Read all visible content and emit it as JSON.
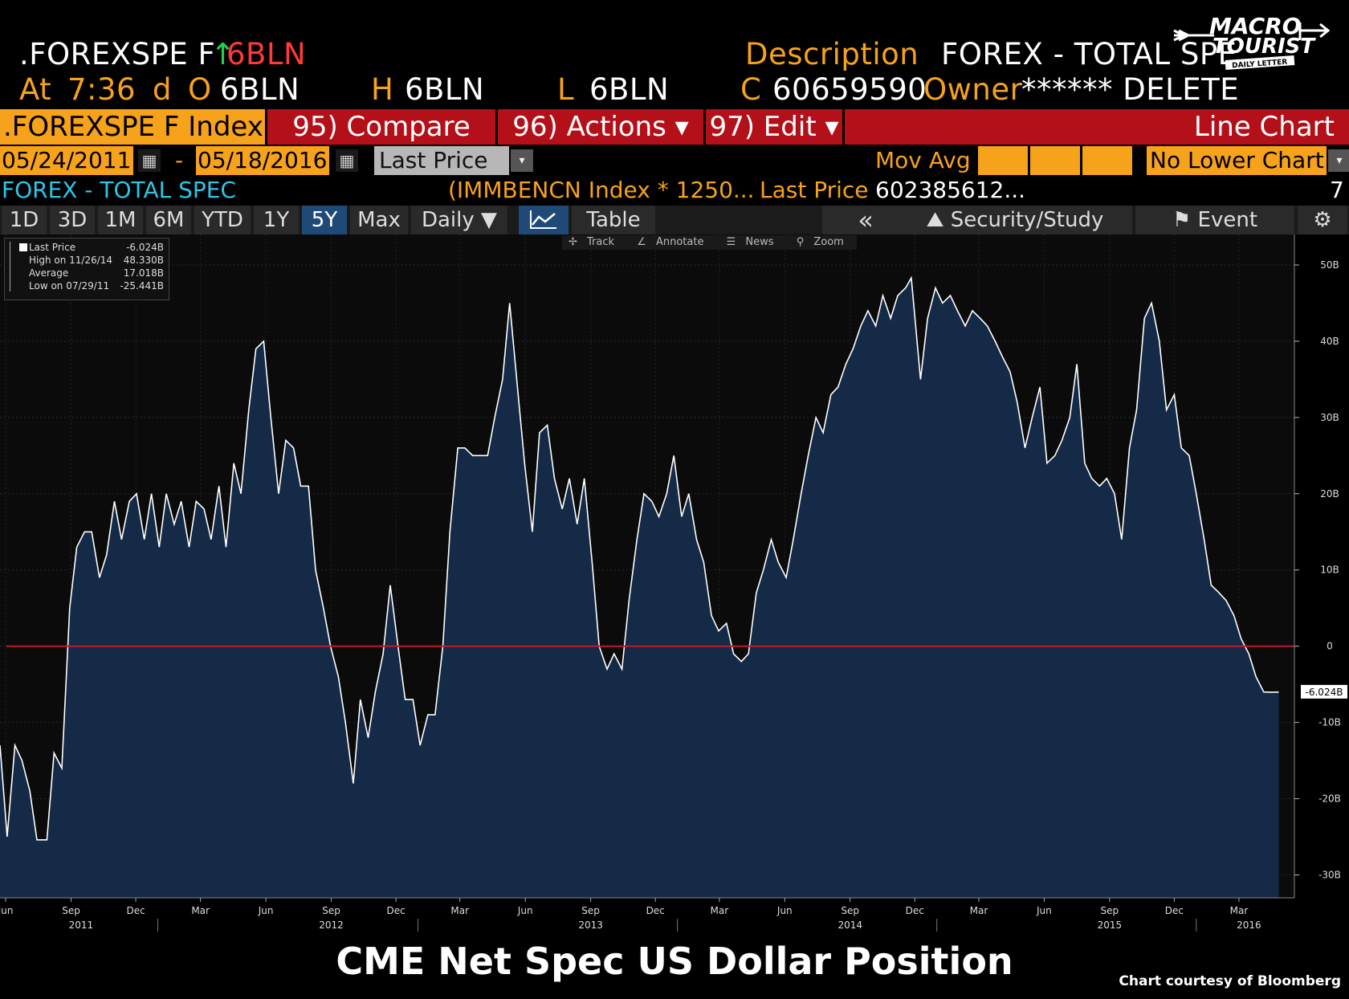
{
  "header": {
    "ticker": ".FOREXSPE F",
    "arrow": "↑",
    "change": "6BLN",
    "description_label": "Description",
    "description_value": "FOREX - TOTAL SPE",
    "at_label": "At",
    "time": "7:36",
    "d_label": "d",
    "open_label": "O",
    "open_value": "6BLN",
    "high_label": "H",
    "high_value": "6BLN",
    "low_label": "L",
    "low_value": "6BLN",
    "close_label": "C",
    "close_value": "60659590",
    "owner_label": "Owner",
    "owner_value": "****** DELETE"
  },
  "logo": {
    "line1": "MACRO",
    "line2": "TOURIST",
    "line3": "DAILY LETTER"
  },
  "tabs": {
    "security": ".FOREXSPE F Index",
    "compare": "95) Compare",
    "actions": "96) Actions ▾",
    "edit": "97) Edit ▾",
    "chart_type": "Line Chart"
  },
  "controls": {
    "start_date": "05/24/2011",
    "dash": "-",
    "end_date": "05/18/2016",
    "field": "Last Price",
    "mov_avg_label": "Mov Avg",
    "lower_chart": "No Lower Chart"
  },
  "series_row": {
    "name": "FOREX - TOTAL SPEC",
    "compare": "(IMMBENCN Index * 1250...",
    "last_price_label": "Last Price",
    "last_price_value": "602385612...",
    "count": "7"
  },
  "periods": {
    "items": [
      "1D",
      "3D",
      "1M",
      "6M",
      "YTD",
      "1Y",
      "5Y",
      "Max"
    ],
    "active": "5Y",
    "frequency": "Daily ▼",
    "table": "Table",
    "back": "«",
    "security_study": "Security/Study",
    "event": "Event"
  },
  "chart_tools": [
    "Track",
    "Annotate",
    "News",
    "Zoom"
  ],
  "legend": [
    {
      "label": "Last Price",
      "value": "-6.024B"
    },
    {
      "label": "High on 11/26/14",
      "value": "48.330B"
    },
    {
      "label": "Average",
      "value": "17.018B"
    },
    {
      "label": "Low on 07/29/11",
      "value": "-25.441B"
    }
  ],
  "chart_data": {
    "type": "area",
    "title": "CME Net Spec US Dollar Position",
    "ylabel": "",
    "unit": "B",
    "ylim": [
      -33,
      54
    ],
    "yticks": [
      -30,
      -20,
      -10,
      0,
      10,
      20,
      30,
      40,
      50
    ],
    "ytick_labels": [
      "-30B",
      "-20B",
      "-10B",
      "0",
      "10B",
      "20B",
      "30B",
      "40B",
      "50B"
    ],
    "zero_line": 0,
    "last_value_label": "-6.024B",
    "xrange": [
      "2011-05-24",
      "2016-05-18"
    ],
    "month_ticks": [
      {
        "date": "2011-06-01",
        "label": "Jun"
      },
      {
        "date": "2011-09-01",
        "label": "Sep"
      },
      {
        "date": "2011-12-01",
        "label": "Dec"
      },
      {
        "date": "2012-03-01",
        "label": "Mar"
      },
      {
        "date": "2012-06-01",
        "label": "Jun"
      },
      {
        "date": "2012-09-01",
        "label": "Sep"
      },
      {
        "date": "2012-12-01",
        "label": "Dec"
      },
      {
        "date": "2013-03-01",
        "label": "Mar"
      },
      {
        "date": "2013-06-01",
        "label": "Jun"
      },
      {
        "date": "2013-09-01",
        "label": "Sep"
      },
      {
        "date": "2013-12-01",
        "label": "Dec"
      },
      {
        "date": "2014-03-01",
        "label": "Mar"
      },
      {
        "date": "2014-06-01",
        "label": "Jun"
      },
      {
        "date": "2014-09-01",
        "label": "Sep"
      },
      {
        "date": "2014-12-01",
        "label": "Dec"
      },
      {
        "date": "2015-03-01",
        "label": "Mar"
      },
      {
        "date": "2015-06-01",
        "label": "Jun"
      },
      {
        "date": "2015-09-01",
        "label": "Sep"
      },
      {
        "date": "2015-12-01",
        "label": "Dec"
      },
      {
        "date": "2016-03-01",
        "label": "Mar"
      }
    ],
    "year_ticks": [
      {
        "date": "2011-09-15",
        "label": "2011"
      },
      {
        "date": "2012-09-01",
        "label": "2012"
      },
      {
        "date": "2013-09-01",
        "label": "2013"
      },
      {
        "date": "2014-09-01",
        "label": "2014"
      },
      {
        "date": "2015-09-01",
        "label": "2015"
      },
      {
        "date": "2016-03-15",
        "label": "2016"
      }
    ],
    "series": [
      {
        "name": "FOREX - TOTAL SPEC",
        "points": [
          [
            "2011-05-24",
            -13
          ],
          [
            "2011-06-03",
            -25
          ],
          [
            "2011-06-14",
            -13
          ],
          [
            "2011-06-24",
            -15
          ],
          [
            "2011-07-05",
            -19
          ],
          [
            "2011-07-15",
            -25.4
          ],
          [
            "2011-07-29",
            -25.4
          ],
          [
            "2011-08-08",
            -14
          ],
          [
            "2011-08-19",
            -16
          ],
          [
            "2011-08-30",
            5
          ],
          [
            "2011-09-09",
            13
          ],
          [
            "2011-09-20",
            15
          ],
          [
            "2011-09-30",
            15
          ],
          [
            "2011-10-11",
            9
          ],
          [
            "2011-10-21",
            12
          ],
          [
            "2011-11-01",
            19
          ],
          [
            "2011-11-11",
            14
          ],
          [
            "2011-11-22",
            19
          ],
          [
            "2011-12-02",
            20
          ],
          [
            "2011-12-13",
            14
          ],
          [
            "2011-12-23",
            20
          ],
          [
            "2012-01-03",
            13
          ],
          [
            "2012-01-13",
            20
          ],
          [
            "2012-01-24",
            16
          ],
          [
            "2012-02-03",
            19
          ],
          [
            "2012-02-14",
            13
          ],
          [
            "2012-02-24",
            19
          ],
          [
            "2012-03-06",
            18
          ],
          [
            "2012-03-16",
            14
          ],
          [
            "2012-03-27",
            21
          ],
          [
            "2012-04-06",
            13
          ],
          [
            "2012-04-17",
            24
          ],
          [
            "2012-04-27",
            20
          ],
          [
            "2012-05-08",
            31
          ],
          [
            "2012-05-18",
            39
          ],
          [
            "2012-05-29",
            40
          ],
          [
            "2012-06-08",
            30
          ],
          [
            "2012-06-19",
            20
          ],
          [
            "2012-06-29",
            27
          ],
          [
            "2012-07-10",
            26
          ],
          [
            "2012-07-20",
            21
          ],
          [
            "2012-07-31",
            21
          ],
          [
            "2012-08-10",
            10
          ],
          [
            "2012-08-21",
            5
          ],
          [
            "2012-08-31",
            0
          ],
          [
            "2012-09-11",
            -4
          ],
          [
            "2012-09-21",
            -10
          ],
          [
            "2012-10-02",
            -18
          ],
          [
            "2012-10-12",
            -7
          ],
          [
            "2012-10-23",
            -12
          ],
          [
            "2012-11-02",
            -6
          ],
          [
            "2012-11-13",
            -1
          ],
          [
            "2012-11-23",
            8
          ],
          [
            "2012-12-04",
            0
          ],
          [
            "2012-12-14",
            -7
          ],
          [
            "2012-12-25",
            -7
          ],
          [
            "2013-01-04",
            -13
          ],
          [
            "2013-01-15",
            -9
          ],
          [
            "2013-01-25",
            -9
          ],
          [
            "2013-02-05",
            0
          ],
          [
            "2013-02-15",
            15
          ],
          [
            "2013-02-26",
            26
          ],
          [
            "2013-03-08",
            26
          ],
          [
            "2013-03-19",
            25
          ],
          [
            "2013-03-29",
            25
          ],
          [
            "2013-04-09",
            25
          ],
          [
            "2013-04-19",
            30
          ],
          [
            "2013-04-30",
            35
          ],
          [
            "2013-05-10",
            45
          ],
          [
            "2013-05-21",
            34
          ],
          [
            "2013-05-31",
            24
          ],
          [
            "2013-06-11",
            15
          ],
          [
            "2013-06-21",
            28
          ],
          [
            "2013-07-02",
            29
          ],
          [
            "2013-07-12",
            22
          ],
          [
            "2013-07-23",
            18
          ],
          [
            "2013-08-02",
            22
          ],
          [
            "2013-08-13",
            16
          ],
          [
            "2013-08-23",
            22
          ],
          [
            "2013-09-03",
            11
          ],
          [
            "2013-09-13",
            0
          ],
          [
            "2013-09-24",
            -3
          ],
          [
            "2013-10-04",
            -1
          ],
          [
            "2013-10-15",
            -3
          ],
          [
            "2013-10-25",
            6
          ],
          [
            "2013-11-05",
            14
          ],
          [
            "2013-11-15",
            20
          ],
          [
            "2013-11-26",
            19
          ],
          [
            "2013-12-06",
            17
          ],
          [
            "2013-12-17",
            20
          ],
          [
            "2013-12-27",
            25
          ],
          [
            "2014-01-07",
            17
          ],
          [
            "2014-01-17",
            20
          ],
          [
            "2014-01-28",
            14
          ],
          [
            "2014-02-07",
            11
          ],
          [
            "2014-02-18",
            4
          ],
          [
            "2014-02-28",
            2
          ],
          [
            "2014-03-11",
            3
          ],
          [
            "2014-03-21",
            -1
          ],
          [
            "2014-04-01",
            -2
          ],
          [
            "2014-04-11",
            -1
          ],
          [
            "2014-04-22",
            7
          ],
          [
            "2014-05-02",
            10
          ],
          [
            "2014-05-13",
            14
          ],
          [
            "2014-05-23",
            11
          ],
          [
            "2014-06-03",
            9
          ],
          [
            "2014-06-13",
            14
          ],
          [
            "2014-06-24",
            20
          ],
          [
            "2014-07-04",
            25
          ],
          [
            "2014-07-15",
            30
          ],
          [
            "2014-07-25",
            28
          ],
          [
            "2014-08-05",
            33
          ],
          [
            "2014-08-15",
            34
          ],
          [
            "2014-08-26",
            37
          ],
          [
            "2014-09-05",
            39
          ],
          [
            "2014-09-16",
            42
          ],
          [
            "2014-09-26",
            44
          ],
          [
            "2014-10-07",
            42
          ],
          [
            "2014-10-17",
            46
          ],
          [
            "2014-10-28",
            43
          ],
          [
            "2014-11-07",
            46
          ],
          [
            "2014-11-18",
            47
          ],
          [
            "2014-11-26",
            48.3
          ],
          [
            "2014-12-09",
            35
          ],
          [
            "2014-12-19",
            43
          ],
          [
            "2014-12-30",
            47
          ],
          [
            "2015-01-09",
            45
          ],
          [
            "2015-01-20",
            46
          ],
          [
            "2015-01-30",
            44
          ],
          [
            "2015-02-10",
            42
          ],
          [
            "2015-02-20",
            44
          ],
          [
            "2015-03-03",
            43
          ],
          [
            "2015-03-13",
            42
          ],
          [
            "2015-03-24",
            40
          ],
          [
            "2015-04-03",
            38
          ],
          [
            "2015-04-14",
            36
          ],
          [
            "2015-04-24",
            32
          ],
          [
            "2015-05-05",
            26
          ],
          [
            "2015-05-15",
            30
          ],
          [
            "2015-05-26",
            34
          ],
          [
            "2015-06-05",
            24
          ],
          [
            "2015-06-16",
            25
          ],
          [
            "2015-06-26",
            27
          ],
          [
            "2015-07-07",
            30
          ],
          [
            "2015-07-17",
            37
          ],
          [
            "2015-07-28",
            24
          ],
          [
            "2015-08-07",
            22
          ],
          [
            "2015-08-18",
            21
          ],
          [
            "2015-08-28",
            22
          ],
          [
            "2015-09-08",
            20
          ],
          [
            "2015-09-18",
            14
          ],
          [
            "2015-09-29",
            26
          ],
          [
            "2015-10-09",
            31
          ],
          [
            "2015-10-20",
            43
          ],
          [
            "2015-10-30",
            45
          ],
          [
            "2015-11-10",
            40
          ],
          [
            "2015-11-20",
            31
          ],
          [
            "2015-12-01",
            33
          ],
          [
            "2015-12-11",
            26
          ],
          [
            "2015-12-22",
            25
          ],
          [
            "2016-01-01",
            20
          ],
          [
            "2016-01-12",
            14
          ],
          [
            "2016-01-22",
            8
          ],
          [
            "2016-02-02",
            7
          ],
          [
            "2016-02-12",
            6
          ],
          [
            "2016-02-23",
            4
          ],
          [
            "2016-03-04",
            1
          ],
          [
            "2016-03-15",
            -1
          ],
          [
            "2016-03-25",
            -4
          ],
          [
            "2016-04-05",
            -6
          ],
          [
            "2016-04-15",
            -6.024
          ],
          [
            "2016-04-26",
            -6.024
          ]
        ]
      }
    ]
  }
}
